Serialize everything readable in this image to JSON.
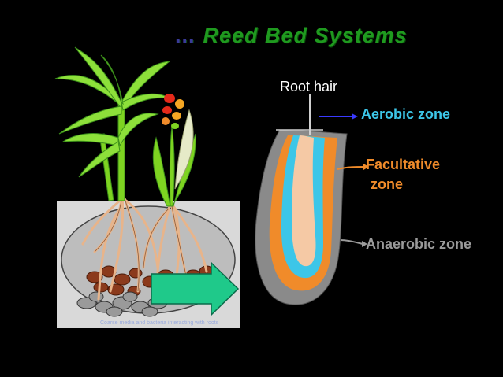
{
  "title": {
    "prefix": "...",
    "text": "Reed Bed Systems"
  },
  "labels": {
    "root_hair": "Root hair",
    "aerobic_zone": "Aerobic zone",
    "facultative_line1": "Facultative",
    "facultative_line2": "zone",
    "anaerobic_zone": "Anaerobic zone"
  },
  "caption": "Coarse media and bacteria interacting with roots",
  "colors": {
    "title_green": "#1f9a1f",
    "aerobic": "#3cc6e8",
    "facultative": "#f08b2a",
    "anaerobic": "#8a8a8a",
    "flow_arrow": "#1fc98a",
    "background": "#000000"
  }
}
